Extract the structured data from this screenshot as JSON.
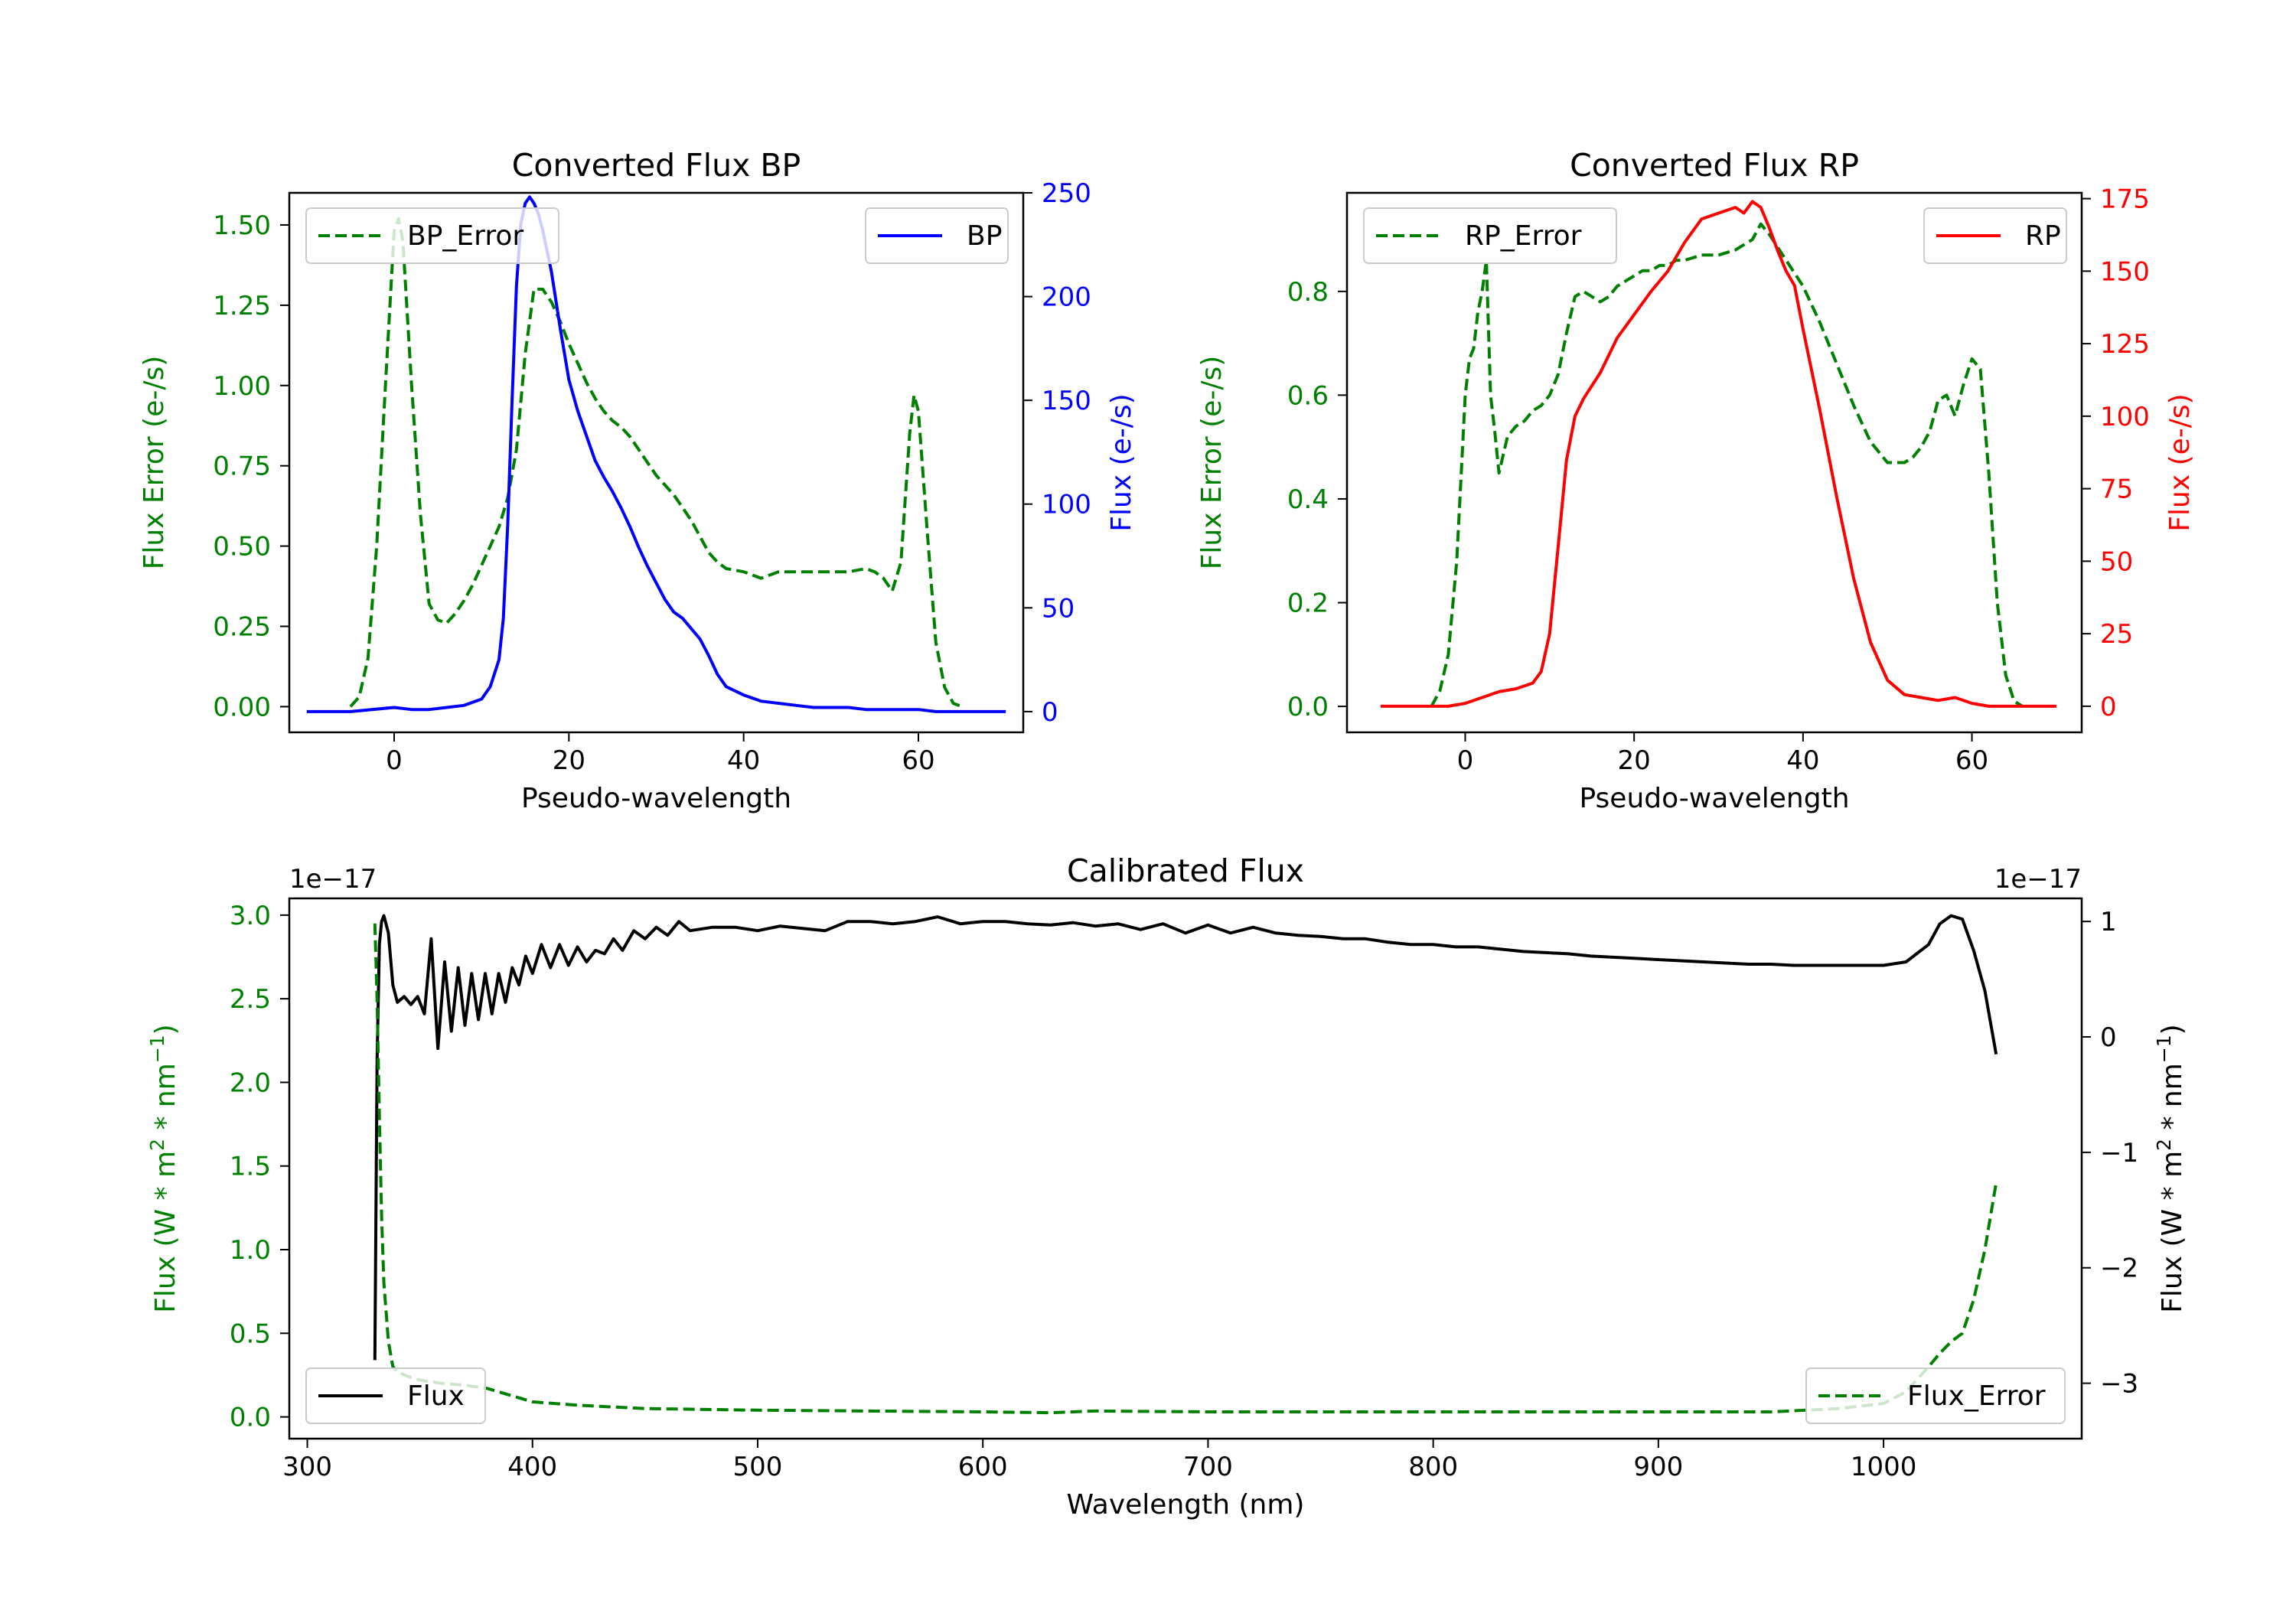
{
  "chart_data": [
    {
      "id": "bp",
      "type": "line",
      "title": "Converted Flux BP",
      "xlabel": "Pseudo-wavelength",
      "ylabel_left": "Flux Error (e-/s)",
      "ylabel_right": "Flux (e-/s)",
      "xlim": [
        -12,
        72
      ],
      "ylim_left": [
        -0.08,
        1.6
      ],
      "ylim_right": [
        -10,
        250
      ],
      "xticks": [
        0,
        20,
        40,
        60
      ],
      "yticks_left": [
        "0.00",
        "0.25",
        "0.50",
        "0.75",
        "1.00",
        "1.25",
        "1.50"
      ],
      "yticks_right": [
        "0",
        "50",
        "100",
        "150",
        "200",
        "250"
      ],
      "colors": {
        "error": "#008000",
        "flux": "#0000ff",
        "left_axis": "#008000",
        "right_axis": "#0000ff"
      },
      "legend": {
        "error": "BP_Error",
        "flux": "BP"
      },
      "series": [
        {
          "name": "BP_Error",
          "axis": "left",
          "style": "dashed",
          "color": "#008000",
          "x": [
            -5,
            -4,
            -3,
            -2,
            -1,
            0,
            0.5,
            1,
            2,
            3,
            4,
            5,
            6,
            7,
            8,
            9,
            10,
            11,
            12,
            13,
            14,
            15,
            16,
            17,
            18,
            19,
            20,
            21,
            22,
            23,
            24,
            25,
            26,
            27,
            28,
            29,
            30,
            31,
            32,
            33,
            34,
            35,
            36,
            37,
            38,
            40,
            42,
            44,
            46,
            48,
            50,
            52,
            54,
            55,
            56,
            57,
            58,
            59,
            59.5,
            60,
            61,
            62,
            63,
            64,
            65
          ],
          "y": [
            0.0,
            0.03,
            0.15,
            0.5,
            1.0,
            1.48,
            1.52,
            1.45,
            1.0,
            0.6,
            0.32,
            0.27,
            0.26,
            0.29,
            0.33,
            0.38,
            0.44,
            0.5,
            0.56,
            0.65,
            0.8,
            1.1,
            1.3,
            1.3,
            1.26,
            1.2,
            1.13,
            1.07,
            1.01,
            0.96,
            0.92,
            0.89,
            0.87,
            0.84,
            0.8,
            0.76,
            0.72,
            0.69,
            0.66,
            0.62,
            0.58,
            0.53,
            0.48,
            0.45,
            0.43,
            0.42,
            0.4,
            0.42,
            0.42,
            0.42,
            0.42,
            0.42,
            0.43,
            0.42,
            0.4,
            0.36,
            0.45,
            0.85,
            0.97,
            0.92,
            0.55,
            0.2,
            0.06,
            0.01,
            0.0
          ]
        },
        {
          "name": "BP",
          "axis": "right",
          "style": "solid",
          "color": "#0000ff",
          "x": [
            -10,
            -5,
            0,
            2,
            4,
            6,
            8,
            10,
            11,
            12,
            12.5,
            13,
            13.5,
            14,
            14.5,
            15,
            15.5,
            16,
            16.5,
            17,
            18,
            19,
            20,
            21,
            22,
            23,
            24,
            25,
            26,
            27,
            28,
            29,
            30,
            31,
            32,
            33,
            34,
            35,
            36,
            37,
            38,
            40,
            42,
            44,
            46,
            48,
            50,
            52,
            54,
            56,
            58,
            60,
            62,
            64,
            66,
            70
          ],
          "y": [
            0,
            0,
            2,
            1,
            1,
            2,
            3,
            6,
            12,
            25,
            45,
            90,
            150,
            205,
            235,
            245,
            248,
            245,
            240,
            232,
            212,
            185,
            160,
            145,
            133,
            121,
            113,
            106,
            98,
            89,
            79,
            70,
            62,
            54,
            48,
            45,
            40,
            35,
            27,
            18,
            12,
            8,
            5,
            4,
            3,
            2,
            2,
            2,
            1,
            1,
            1,
            1,
            0,
            0,
            0,
            0
          ]
        }
      ]
    },
    {
      "id": "rp",
      "type": "line",
      "title": "Converted Flux RP",
      "xlabel": "Pseudo-wavelength",
      "ylabel_left": "Flux Error (e-/s)",
      "ylabel_right": "Flux (e-/s)",
      "xlim": [
        -14,
        73
      ],
      "ylim_left": [
        -0.05,
        0.99
      ],
      "ylim_right": [
        -9,
        177
      ],
      "xticks": [
        0,
        20,
        40,
        60
      ],
      "yticks_left": [
        "0.0",
        "0.2",
        "0.4",
        "0.6",
        "0.8"
      ],
      "yticks_right": [
        "0",
        "25",
        "50",
        "75",
        "100",
        "125",
        "150",
        "175"
      ],
      "colors": {
        "error": "#008000",
        "flux": "#ff0000",
        "left_axis": "#008000",
        "right_axis": "#ff0000"
      },
      "legend": {
        "error": "RP_Error",
        "flux": "RP"
      },
      "series": [
        {
          "name": "RP_Error",
          "axis": "left",
          "style": "dashed",
          "color": "#008000",
          "x": [
            -4,
            -3,
            -2,
            -1,
            0,
            0.5,
            1,
            1.5,
            2,
            2.5,
            3,
            3.5,
            4,
            5,
            6,
            7,
            8,
            9,
            10,
            11,
            12,
            13,
            14,
            15,
            16,
            17,
            18,
            19,
            20,
            21,
            22,
            23,
            24,
            25,
            26,
            28,
            30,
            32,
            34,
            35,
            36,
            38,
            40,
            42,
            44,
            46,
            48,
            50,
            52,
            53,
            54,
            55,
            56,
            57,
            58,
            59,
            60,
            61,
            62,
            63,
            64,
            65,
            66
          ],
          "y": [
            0.0,
            0.03,
            0.1,
            0.28,
            0.6,
            0.67,
            0.69,
            0.76,
            0.8,
            0.86,
            0.6,
            0.53,
            0.45,
            0.52,
            0.54,
            0.55,
            0.57,
            0.58,
            0.6,
            0.64,
            0.72,
            0.79,
            0.8,
            0.79,
            0.78,
            0.79,
            0.81,
            0.82,
            0.83,
            0.84,
            0.84,
            0.85,
            0.85,
            0.86,
            0.86,
            0.87,
            0.87,
            0.88,
            0.9,
            0.93,
            0.91,
            0.86,
            0.81,
            0.74,
            0.66,
            0.58,
            0.51,
            0.47,
            0.47,
            0.48,
            0.5,
            0.53,
            0.59,
            0.6,
            0.56,
            0.62,
            0.67,
            0.65,
            0.45,
            0.2,
            0.06,
            0.01,
            0.0
          ]
        },
        {
          "name": "RP",
          "axis": "right",
          "style": "solid",
          "color": "#ff0000",
          "x": [
            -10,
            -5,
            -2,
            0,
            2,
            4,
            6,
            8,
            9,
            10,
            11,
            12,
            13,
            14,
            16,
            18,
            20,
            22,
            24,
            26,
            28,
            30,
            32,
            33,
            34,
            35,
            36,
            37,
            38,
            39,
            40,
            42,
            44,
            46,
            48,
            50,
            52,
            54,
            56,
            58,
            60,
            62,
            64,
            66,
            70
          ],
          "y": [
            0,
            0,
            0,
            1,
            3,
            5,
            6,
            8,
            12,
            25,
            55,
            85,
            100,
            106,
            115,
            127,
            135,
            143,
            150,
            160,
            168,
            170,
            172,
            170,
            174,
            172,
            165,
            157,
            150,
            145,
            130,
            102,
            72,
            44,
            22,
            9,
            4,
            3,
            2,
            3,
            1,
            0,
            0,
            0,
            0
          ]
        }
      ]
    },
    {
      "id": "cal",
      "type": "line",
      "title": "Calibrated Flux",
      "xlabel": "Wavelength (nm)",
      "ylabel_left": "Flux (W * m",
      "ylabel_right": "Flux (W * m",
      "ylabel_sup_1": "2",
      "ylabel_mid": " * nm",
      "ylabel_sup_2": "−1",
      "ylabel_close": ")",
      "offset_left": "1e−17",
      "offset_right": "1e−17",
      "xlim": [
        292,
        1088
      ],
      "ylim_left": [
        -0.13,
        3.1
      ],
      "ylim_right": [
        -3.48,
        1.2
      ],
      "xticks": [
        "300",
        "400",
        "500",
        "600",
        "700",
        "800",
        "900",
        "1000"
      ],
      "yticks_left": [
        "0.0",
        "0.5",
        "1.0",
        "1.5",
        "2.0",
        "2.5",
        "3.0"
      ],
      "yticks_right": [
        "−3",
        "−2",
        "−1",
        "0",
        "1"
      ],
      "colors": {
        "error": "#008000",
        "flux": "#000000",
        "left_axis": "#008000",
        "right_axis": "#000000"
      },
      "legend": {
        "error": "Flux_Error",
        "flux": "Flux"
      },
      "series": [
        {
          "name": "Flux",
          "axis": "right",
          "style": "solid",
          "color": "#000000",
          "x": [
            330,
            331,
            332,
            333,
            334,
            336,
            338,
            340,
            343,
            346,
            349,
            352,
            355,
            358,
            361,
            364,
            367,
            370,
            373,
            376,
            379,
            382,
            385,
            388,
            391,
            394,
            397,
            400,
            404,
            408,
            412,
            416,
            420,
            424,
            428,
            432,
            436,
            440,
            445,
            450,
            455,
            460,
            465,
            470,
            480,
            490,
            500,
            510,
            520,
            530,
            540,
            550,
            560,
            570,
            580,
            590,
            600,
            610,
            620,
            630,
            640,
            650,
            660,
            670,
            680,
            690,
            700,
            710,
            720,
            730,
            740,
            750,
            760,
            770,
            780,
            790,
            800,
            810,
            820,
            830,
            840,
            850,
            860,
            870,
            880,
            890,
            900,
            910,
            920,
            930,
            940,
            950,
            960,
            970,
            980,
            990,
            1000,
            1010,
            1020,
            1025,
            1030,
            1035,
            1040,
            1045,
            1050
          ],
          "y": [
            -2.8,
            -0.2,
            0.8,
            1.0,
            1.05,
            0.9,
            0.45,
            0.3,
            0.35,
            0.28,
            0.35,
            0.2,
            0.85,
            -0.1,
            0.65,
            0.05,
            0.6,
            0.1,
            0.55,
            0.15,
            0.55,
            0.2,
            0.55,
            0.3,
            0.6,
            0.45,
            0.7,
            0.55,
            0.8,
            0.6,
            0.8,
            0.62,
            0.78,
            0.65,
            0.75,
            0.72,
            0.85,
            0.75,
            0.92,
            0.85,
            0.95,
            0.88,
            1.0,
            0.92,
            0.95,
            0.95,
            0.92,
            0.96,
            0.94,
            0.92,
            1.0,
            1.0,
            0.98,
            1.0,
            1.04,
            0.98,
            1.0,
            1.0,
            0.98,
            0.97,
            0.99,
            0.96,
            0.98,
            0.93,
            0.98,
            0.9,
            0.97,
            0.9,
            0.95,
            0.9,
            0.88,
            0.87,
            0.85,
            0.85,
            0.82,
            0.8,
            0.8,
            0.78,
            0.78,
            0.76,
            0.74,
            0.73,
            0.72,
            0.7,
            0.69,
            0.68,
            0.67,
            0.66,
            0.65,
            0.64,
            0.63,
            0.63,
            0.62,
            0.62,
            0.62,
            0.62,
            0.62,
            0.65,
            0.8,
            0.98,
            1.05,
            1.02,
            0.75,
            0.4,
            -0.15
          ]
        },
        {
          "name": "Flux_Error",
          "axis": "left",
          "style": "dashed",
          "color": "#008000",
          "x": [
            330,
            331,
            332,
            333,
            334,
            336,
            338,
            340,
            345,
            350,
            360,
            370,
            380,
            390,
            400,
            420,
            450,
            500,
            550,
            600,
            630,
            650,
            700,
            750,
            800,
            850,
            900,
            950,
            980,
            1000,
            1010,
            1020,
            1025,
            1030,
            1035,
            1040,
            1045,
            1050
          ],
          "y": [
            2.95,
            2.5,
            1.8,
            1.2,
            0.8,
            0.45,
            0.3,
            0.27,
            0.24,
            0.22,
            0.2,
            0.19,
            0.17,
            0.13,
            0.09,
            0.07,
            0.05,
            0.04,
            0.035,
            0.03,
            0.025,
            0.035,
            0.03,
            0.03,
            0.03,
            0.03,
            0.03,
            0.03,
            0.05,
            0.08,
            0.15,
            0.3,
            0.38,
            0.45,
            0.5,
            0.7,
            1.0,
            1.4
          ]
        }
      ]
    }
  ]
}
